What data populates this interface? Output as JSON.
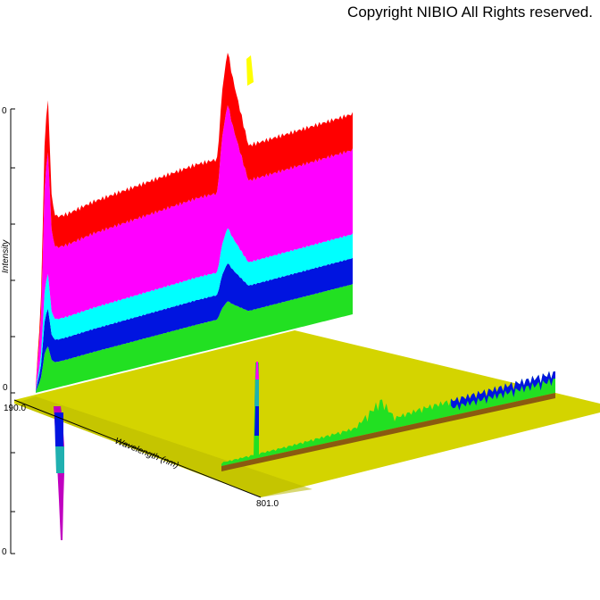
{
  "copyright": "Copyright NIBIO All Rights reserved.",
  "chart_data": {
    "type": "area",
    "subtype": "3d-surface",
    "title": "",
    "xlabel": "Wavelength (nm)",
    "ylabel": "Intensity",
    "x_ticks": [
      "190.0",
      "801.0"
    ],
    "y_ticks": [
      "0"
    ],
    "xlim": [
      190.0,
      801.0
    ],
    "colors": {
      "band_1": "#22e022",
      "band_2": "#0014e0",
      "band_3": "#00ffff",
      "band_4": "#ff00ff",
      "band_5": "#ff0000",
      "band_6": "#ffff00",
      "floor": "#d4d400",
      "negative": "#c000c0"
    },
    "series": [
      {
        "x": [
          190,
          200,
          208,
          215,
          218,
          222,
          230,
          250,
          300,
          400,
          500,
          540,
          550,
          556,
          560,
          570,
          600,
          700,
          801
        ],
        "values": [
          0.02,
          0.3,
          0.9,
          1.0,
          0.75,
          0.62,
          0.58,
          0.58,
          0.6,
          0.62,
          0.64,
          0.64,
          0.88,
          0.95,
          1.0,
          0.9,
          0.66,
          0.67,
          0.68
        ]
      },
      {
        "x": [
          190,
          300,
          400,
          500,
          540,
          560,
          600,
          700,
          801
        ],
        "values": [
          0,
          0.02,
          0.03,
          0.05,
          0.18,
          0.06,
          0.08,
          0.1,
          0.12
        ]
      }
    ]
  }
}
